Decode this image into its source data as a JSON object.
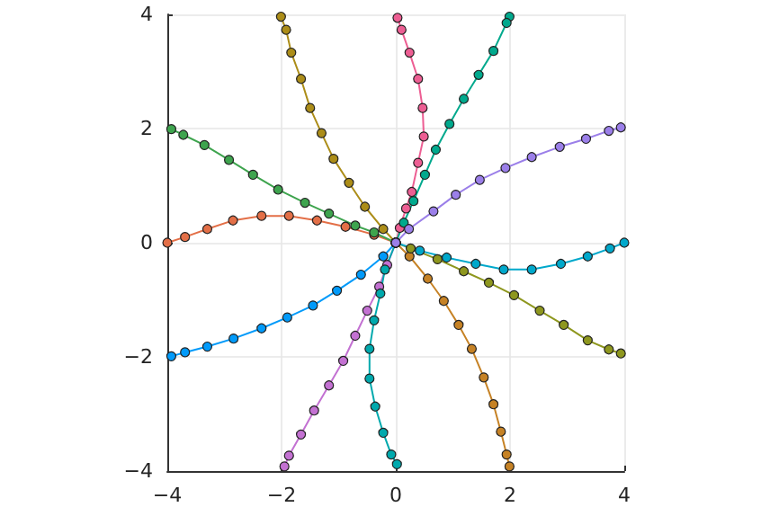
{
  "chart_data": {
    "type": "line",
    "xlim": [
      -4,
      4
    ],
    "ylim": [
      -4,
      4
    ],
    "xticks": [
      -4,
      -2,
      0,
      2,
      4
    ],
    "yticks": [
      -4,
      -2,
      0,
      2,
      4
    ],
    "grid": true,
    "marker": "circle",
    "line_style": "solid",
    "series": [
      {
        "color": "#009afa",
        "x": [
          -3.93,
          -3.69,
          -3.3,
          -2.84,
          -2.35,
          -1.9,
          -1.45,
          -1.03,
          -0.61,
          -0.22,
          0
        ],
        "values": [
          -1.99,
          -1.92,
          -1.82,
          -1.68,
          -1.5,
          -1.31,
          -1.1,
          -0.84,
          -0.56,
          -0.24,
          0
        ]
      },
      {
        "color": "#e36f47",
        "x": [
          -4,
          -3.69,
          -3.3,
          -2.85,
          -2.35,
          -1.87,
          -1.38,
          -0.88,
          -0.38,
          0
        ],
        "values": [
          0,
          0.1,
          0.24,
          0.39,
          0.47,
          0.47,
          0.39,
          0.28,
          0.14,
          0
        ]
      },
      {
        "color": "#3ea44e",
        "x": [
          -3.93,
          -3.72,
          -3.35,
          -2.92,
          -2.5,
          -2.06,
          -1.59,
          -1.17,
          -0.71,
          -0.38,
          0
        ],
        "values": [
          1.99,
          1.89,
          1.71,
          1.45,
          1.19,
          0.93,
          0.7,
          0.51,
          0.3,
          0.18,
          0
        ]
      },
      {
        "color": "#c371d2",
        "x": [
          -1.95,
          -1.87,
          -1.66,
          -1.43,
          -1.17,
          -0.92,
          -0.71,
          -0.5,
          -0.29,
          -0.15,
          0
        ],
        "values": [
          -3.92,
          -3.73,
          -3.36,
          -2.94,
          -2.5,
          -2.07,
          -1.63,
          -1.19,
          -0.77,
          -0.39,
          0
        ]
      },
      {
        "color": "#ac8d18",
        "x": [
          -2.01,
          -1.92,
          -1.83,
          -1.66,
          -1.5,
          -1.3,
          -1.09,
          -0.82,
          -0.54,
          -0.22,
          0
        ],
        "values": [
          3.96,
          3.73,
          3.33,
          2.87,
          2.36,
          1.92,
          1.47,
          1.05,
          0.63,
          0.24,
          0
        ]
      },
      {
        "color": "#00a9ad",
        "x": [
          0.02,
          -0.08,
          -0.22,
          -0.36,
          -0.46,
          -0.46,
          -0.38,
          -0.27,
          -0.19,
          0
        ],
        "values": [
          -3.88,
          -3.71,
          -3.33,
          -2.87,
          -2.38,
          -1.86,
          -1.36,
          -0.89,
          -0.47,
          0
        ]
      },
      {
        "color": "#ed5e93",
        "x": [
          0.03,
          0.1,
          0.24,
          0.39,
          0.47,
          0.49,
          0.39,
          0.28,
          0.18,
          0.07,
          0
        ],
        "values": [
          3.94,
          3.73,
          3.33,
          2.87,
          2.36,
          1.86,
          1.4,
          0.89,
          0.6,
          0.26,
          0
        ]
      },
      {
        "color": "#c68225",
        "x": [
          1.99,
          1.94,
          1.84,
          1.71,
          1.54,
          1.33,
          1.1,
          0.84,
          0.56,
          0.24,
          0
        ],
        "values": [
          -3.92,
          -3.71,
          -3.31,
          -2.83,
          -2.36,
          -1.86,
          -1.44,
          -1.02,
          -0.63,
          -0.24,
          0
        ]
      },
      {
        "color": "#00a98d",
        "x": [
          1.99,
          1.94,
          1.71,
          1.45,
          1.19,
          0.94,
          0.7,
          0.51,
          0.31,
          0.14,
          0
        ],
        "values": [
          3.96,
          3.85,
          3.36,
          2.94,
          2.52,
          2.08,
          1.63,
          1.19,
          0.73,
          0.35,
          0
        ]
      },
      {
        "color": "#8e971e",
        "x": [
          3.94,
          3.73,
          3.36,
          2.94,
          2.52,
          2.07,
          1.63,
          1.19,
          0.73,
          0.26,
          0
        ],
        "values": [
          -1.94,
          -1.87,
          -1.71,
          -1.44,
          -1.19,
          -0.92,
          -0.7,
          -0.5,
          -0.29,
          -0.1,
          0
        ]
      },
      {
        "color": "#00a8cb",
        "x": [
          4,
          3.75,
          3.36,
          2.89,
          2.38,
          1.89,
          1.4,
          0.89,
          0.42,
          0
        ],
        "values": [
          0,
          -0.1,
          -0.24,
          -0.37,
          -0.47,
          -0.47,
          -0.37,
          -0.26,
          -0.14,
          0
        ]
      },
      {
        "color": "#9b7fe9",
        "x": [
          3.94,
          3.73,
          3.33,
          2.87,
          2.38,
          1.92,
          1.47,
          1.05,
          0.66,
          0.23,
          0
        ],
        "values": [
          2.02,
          1.96,
          1.82,
          1.68,
          1.5,
          1.31,
          1.1,
          0.84,
          0.55,
          0.24,
          0
        ]
      }
    ]
  }
}
